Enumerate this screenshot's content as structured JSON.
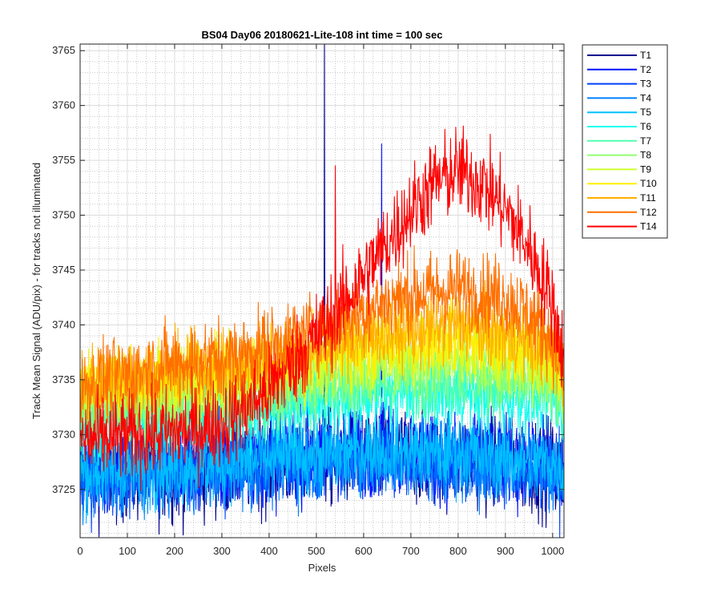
{
  "chart_data": {
    "type": "line",
    "title": "BS04 Day06 20180621-Lite-108 int time = 100 sec",
    "xlabel": "Pixels",
    "ylabel": "Track Mean Signal (ADU/pix) - for tracks not illuminated",
    "xlim": [
      0,
      1024
    ],
    "ylim": [
      3720.6,
      3765.6
    ],
    "xticks": [
      0,
      100,
      200,
      300,
      400,
      500,
      600,
      700,
      800,
      900,
      1000
    ],
    "yticks": [
      3725,
      3730,
      3735,
      3740,
      3745,
      3750,
      3755,
      3760,
      3765
    ],
    "grid": "major and minor",
    "legend_position": "outside-right",
    "n_points": 1024,
    "series": [
      {
        "name": "T1",
        "color": "#00008f",
        "baseline": [
          [
            0,
            3726.5
          ],
          [
            200,
            3726.5
          ],
          [
            400,
            3727.5
          ],
          [
            600,
            3728.2
          ],
          [
            800,
            3727.8
          ],
          [
            1000,
            3727.0
          ],
          [
            1023,
            3726.0
          ]
        ],
        "noise": 2.2,
        "spikes": [
          [
            517,
            3765.6
          ]
        ]
      },
      {
        "name": "T2",
        "color": "#0010ff",
        "baseline": [
          [
            0,
            3726.8
          ],
          [
            200,
            3727.0
          ],
          [
            400,
            3727.8
          ],
          [
            600,
            3728.5
          ],
          [
            800,
            3728.0
          ],
          [
            1000,
            3727.3
          ],
          [
            1023,
            3726.3
          ]
        ],
        "noise": 2.0,
        "spikes": [
          [
            638,
            3756.5
          ]
        ]
      },
      {
        "name": "T3",
        "color": "#0040ff",
        "baseline": [
          [
            0,
            3726.2
          ],
          [
            200,
            3726.6
          ],
          [
            400,
            3727.5
          ],
          [
            600,
            3728.0
          ],
          [
            800,
            3727.6
          ],
          [
            1000,
            3726.9
          ],
          [
            1023,
            3726.0
          ]
        ],
        "noise": 1.9,
        "spikes": []
      },
      {
        "name": "T4",
        "color": "#0080ff",
        "baseline": [
          [
            0,
            3726.0
          ],
          [
            200,
            3726.5
          ],
          [
            400,
            3727.2
          ],
          [
            600,
            3727.8
          ],
          [
            800,
            3727.5
          ],
          [
            1000,
            3726.8
          ],
          [
            1023,
            3726.0
          ]
        ],
        "noise": 1.8,
        "spikes": []
      },
      {
        "name": "T5",
        "color": "#00c0ff",
        "baseline": [
          [
            0,
            3726.6
          ],
          [
            200,
            3727.0
          ],
          [
            400,
            3727.8
          ],
          [
            600,
            3728.6
          ],
          [
            800,
            3728.3
          ],
          [
            1000,
            3727.5
          ],
          [
            1023,
            3726.5
          ]
        ],
        "noise": 1.7,
        "spikes": []
      },
      {
        "name": "T6",
        "color": "#10ffef",
        "baseline": [
          [
            0,
            3731.0
          ],
          [
            200,
            3731.3
          ],
          [
            400,
            3732.3
          ],
          [
            600,
            3733.5
          ],
          [
            800,
            3733.8
          ],
          [
            1000,
            3733.0
          ],
          [
            1023,
            3731.5
          ]
        ],
        "noise": 1.6,
        "spikes": []
      },
      {
        "name": "T7",
        "color": "#50ffaf",
        "baseline": [
          [
            0,
            3732.0
          ],
          [
            200,
            3732.3
          ],
          [
            400,
            3733.2
          ],
          [
            600,
            3734.5
          ],
          [
            800,
            3735.0
          ],
          [
            1000,
            3734.0
          ],
          [
            1023,
            3732.5
          ]
        ],
        "noise": 1.6,
        "spikes": []
      },
      {
        "name": "T8",
        "color": "#8fff70",
        "baseline": [
          [
            0,
            3733.0
          ],
          [
            200,
            3733.3
          ],
          [
            400,
            3734.3
          ],
          [
            600,
            3735.8
          ],
          [
            800,
            3736.3
          ],
          [
            1000,
            3735.2
          ],
          [
            1023,
            3733.5
          ]
        ],
        "noise": 1.6,
        "spikes": []
      },
      {
        "name": "T9",
        "color": "#cfff30",
        "baseline": [
          [
            0,
            3734.0
          ],
          [
            200,
            3734.4
          ],
          [
            400,
            3735.3
          ],
          [
            600,
            3737.0
          ],
          [
            800,
            3737.6
          ],
          [
            1000,
            3736.3
          ],
          [
            1023,
            3734.5
          ]
        ],
        "noise": 1.6,
        "spikes": []
      },
      {
        "name": "T10",
        "color": "#ffef00",
        "baseline": [
          [
            0,
            3735.0
          ],
          [
            200,
            3735.3
          ],
          [
            400,
            3736.3
          ],
          [
            600,
            3738.0
          ],
          [
            800,
            3738.8
          ],
          [
            1000,
            3737.3
          ],
          [
            1023,
            3735.2
          ]
        ],
        "noise": 1.6,
        "spikes": []
      },
      {
        "name": "T11",
        "color": "#ffb000",
        "baseline": [
          [
            0,
            3734.8
          ],
          [
            200,
            3735.5
          ],
          [
            400,
            3736.8
          ],
          [
            600,
            3739.0
          ],
          [
            800,
            3740.0
          ],
          [
            1000,
            3738.0
          ],
          [
            1023,
            3735.5
          ]
        ],
        "noise": 1.7,
        "spikes": []
      },
      {
        "name": "T12",
        "color": "#ff7000",
        "baseline": [
          [
            0,
            3734.2
          ],
          [
            100,
            3735.5
          ],
          [
            200,
            3736.5
          ],
          [
            300,
            3736.8
          ],
          [
            400,
            3738.0
          ],
          [
            500,
            3739.5
          ],
          [
            600,
            3741.3
          ],
          [
            700,
            3742.8
          ],
          [
            800,
            3743.3
          ],
          [
            900,
            3742.5
          ],
          [
            950,
            3741.0
          ],
          [
            1000,
            3738.5
          ],
          [
            1023,
            3735.5
          ]
        ],
        "noise": 1.8,
        "spikes": [
          [
            783,
            3746.3
          ]
        ]
      },
      {
        "name": "T14",
        "color": "#ff0000",
        "baseline": [
          [
            0,
            3729.5
          ],
          [
            100,
            3729.8
          ],
          [
            200,
            3730.2
          ],
          [
            300,
            3731.0
          ],
          [
            400,
            3734.0
          ],
          [
            450,
            3736.5
          ],
          [
            500,
            3739.0
          ],
          [
            550,
            3741.5
          ],
          [
            600,
            3744.5
          ],
          [
            650,
            3747.5
          ],
          [
            700,
            3750.5
          ],
          [
            750,
            3753.0
          ],
          [
            800,
            3754.0
          ],
          [
            850,
            3753.0
          ],
          [
            900,
            3750.5
          ],
          [
            950,
            3747.0
          ],
          [
            1000,
            3742.0
          ],
          [
            1023,
            3737.0
          ]
        ],
        "noise": 2.0,
        "spikes": [
          [
            540,
            3754.5
          ]
        ]
      }
    ]
  }
}
